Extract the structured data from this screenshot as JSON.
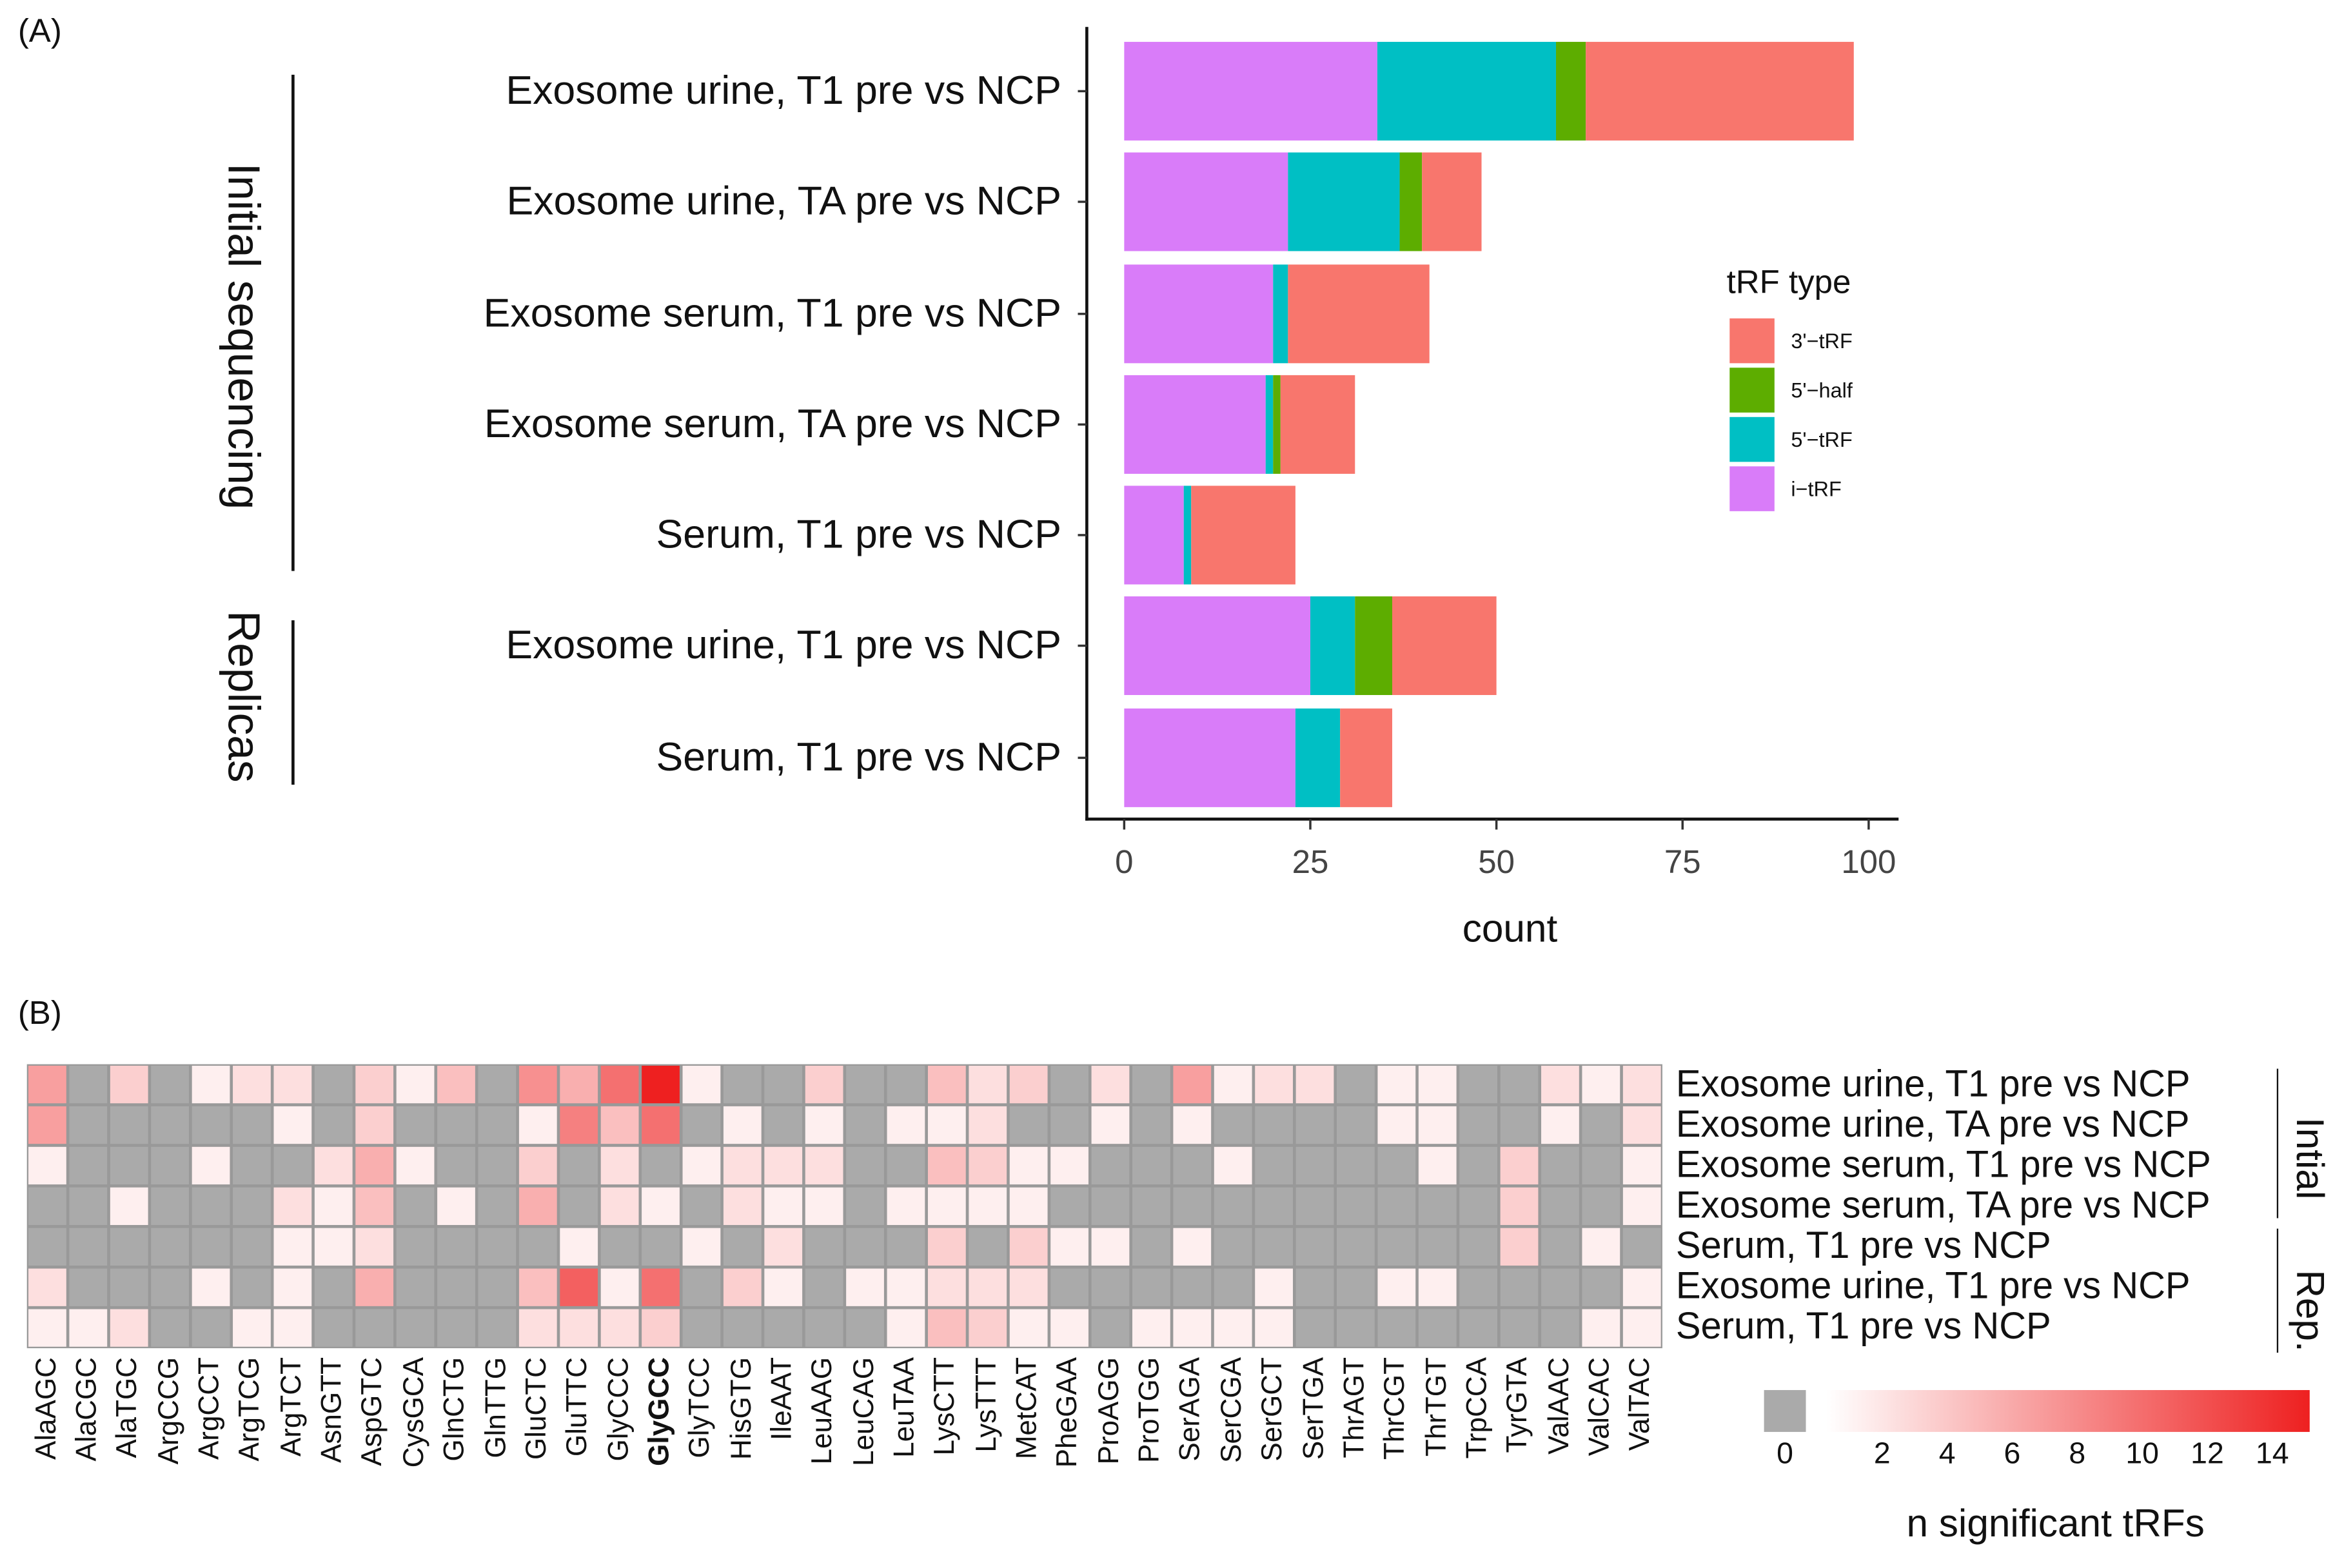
{
  "panel_labels": {
    "a": "(A)",
    "b": "(B)"
  },
  "chart_data": [
    {
      "type": "bar",
      "orientation": "horizontal",
      "stacked": true,
      "xlabel": "count",
      "xlim": [
        0,
        100
      ],
      "xticks": [
        "0",
        "25",
        "50",
        "75",
        "100"
      ],
      "groups": [
        {
          "label": "Initial sequencing",
          "rows": [
            0,
            1,
            2,
            3,
            4
          ]
        },
        {
          "label": "Replicas",
          "rows": [
            5,
            6
          ]
        }
      ],
      "categories": [
        "Exosome urine, T1 pre vs NCP",
        "Exosome urine, TA pre vs NCP",
        "Exosome serum, T1 pre vs NCP",
        "Exosome serum, TA pre vs NCP",
        "Serum, T1 pre vs NCP",
        "Exosome urine, T1 pre vs NCP",
        "Serum, T1 pre vs NCP"
      ],
      "legend": {
        "title": "tRF type",
        "position": "right"
      },
      "series": [
        {
          "name": "i−tRF",
          "color": "#D97CF9",
          "values": [
            34,
            22,
            20,
            19,
            8,
            25,
            23
          ]
        },
        {
          "name": "5'−tRF",
          "color": "#00BFC4",
          "values": [
            24,
            15,
            2,
            1,
            1,
            6,
            6
          ]
        },
        {
          "name": "5'−half",
          "color": "#5DAD00",
          "values": [
            4,
            3,
            0,
            1,
            0,
            5,
            0
          ]
        },
        {
          "name": "3'−tRF",
          "color": "#F8766D",
          "values": [
            36,
            8,
            19,
            10,
            14,
            14,
            7
          ]
        }
      ],
      "legend_order": [
        3,
        2,
        1,
        0
      ]
    },
    {
      "type": "heatmap",
      "rows": [
        "Exosome urine, T1 pre vs NCP",
        "Exosome urine, TA pre vs NCP",
        "Exosome serum, T1 pre vs NCP",
        "Exosome serum, TA  pre vs NCP",
        "Serum, T1 pre vs NCP",
        "Exosome urine, T1 pre vs NCP",
        "Serum, T1 pre vs NCP"
      ],
      "row_groups": [
        {
          "label": "Intial",
          "rows": [
            0,
            1,
            2,
            3,
            4
          ]
        },
        {
          "label": "Rep.",
          "rows": [
            5,
            6
          ]
        }
      ],
      "columns": [
        "AlaAGC",
        "AlaCGC",
        "AlaTGC",
        "ArgCCG",
        "ArgCCT",
        "ArgTCG",
        "ArgTCT",
        "AsnGTT",
        "AspGTC",
        "CysGCA",
        "GlnCTG",
        "GlnTTG",
        "GluCTC",
        "GluTTC",
        "GlyCCC",
        "GlyGCC",
        "GlyTCC",
        "HisGTG",
        "IleAAT",
        "LeuAAG",
        "LeuCAG",
        "LeuTAA",
        "LysCTT",
        "LysTTT",
        "MetCAT",
        "PheGAA",
        "ProAGG",
        "ProTGG",
        "SerAGA",
        "SerCGA",
        "SerGCT",
        "SerTGA",
        "ThrAGT",
        "ThrCGT",
        "ThrTGT",
        "TrpCCA",
        "TyrGTA",
        "ValAAC",
        "ValCAC",
        "ValTAC"
      ],
      "bold_column": "GlyGCC",
      "values": [
        [
          6,
          0,
          3,
          0,
          1,
          2,
          2,
          0,
          3,
          1,
          4,
          0,
          7,
          5,
          9,
          14,
          1,
          0,
          0,
          3,
          0,
          0,
          4,
          2,
          3,
          0,
          2,
          0,
          6,
          1,
          2,
          2,
          0,
          1,
          1,
          0,
          0,
          2,
          1,
          2
        ],
        [
          6,
          0,
          0,
          0,
          0,
          0,
          1,
          0,
          3,
          0,
          0,
          0,
          1,
          8,
          4,
          9,
          0,
          1,
          0,
          1,
          0,
          1,
          1,
          2,
          0,
          0,
          1,
          0,
          1,
          0,
          0,
          0,
          0,
          1,
          1,
          0,
          0,
          1,
          0,
          2
        ],
        [
          1,
          0,
          0,
          0,
          1,
          0,
          0,
          2,
          5,
          1,
          0,
          0,
          3,
          0,
          2,
          0,
          1,
          2,
          2,
          2,
          0,
          0,
          4,
          3,
          1,
          1,
          0,
          0,
          0,
          1,
          0,
          0,
          0,
          0,
          1,
          0,
          3,
          0,
          0,
          1
        ],
        [
          0,
          0,
          1,
          0,
          0,
          0,
          2,
          1,
          4,
          0,
          1,
          0,
          5,
          0,
          2,
          1,
          0,
          2,
          1,
          1,
          0,
          1,
          1,
          1,
          1,
          0,
          0,
          0,
          0,
          0,
          0,
          0,
          0,
          0,
          0,
          0,
          3,
          0,
          0,
          1
        ],
        [
          0,
          0,
          0,
          0,
          0,
          0,
          1,
          1,
          2,
          0,
          0,
          0,
          0,
          1,
          0,
          0,
          1,
          0,
          2,
          0,
          0,
          0,
          3,
          0,
          3,
          1,
          1,
          0,
          1,
          0,
          0,
          0,
          0,
          0,
          0,
          0,
          3,
          0,
          1,
          0
        ],
        [
          2,
          0,
          0,
          0,
          1,
          0,
          1,
          0,
          5,
          0,
          0,
          0,
          4,
          10,
          1,
          9,
          0,
          3,
          1,
          0,
          1,
          1,
          2,
          2,
          2,
          0,
          0,
          0,
          0,
          0,
          1,
          0,
          0,
          1,
          1,
          0,
          0,
          0,
          0,
          1
        ],
        [
          1,
          1,
          2,
          0,
          0,
          1,
          1,
          0,
          0,
          0,
          0,
          0,
          2,
          2,
          2,
          3,
          0,
          0,
          0,
          0,
          0,
          1,
          4,
          3,
          1,
          1,
          0,
          1,
          1,
          1,
          1,
          0,
          0,
          0,
          0,
          0,
          0,
          0,
          1,
          1
        ]
      ],
      "colorbar": {
        "title": "n significant tRFs",
        "ticks": [
          "0",
          "2",
          "4",
          "6",
          "8",
          "10",
          "12",
          "14"
        ],
        "range": [
          0,
          14
        ],
        "zero_color": "#AAAAAA",
        "low_color": "#FFFFFF",
        "high_color": "#EE2020"
      }
    }
  ]
}
